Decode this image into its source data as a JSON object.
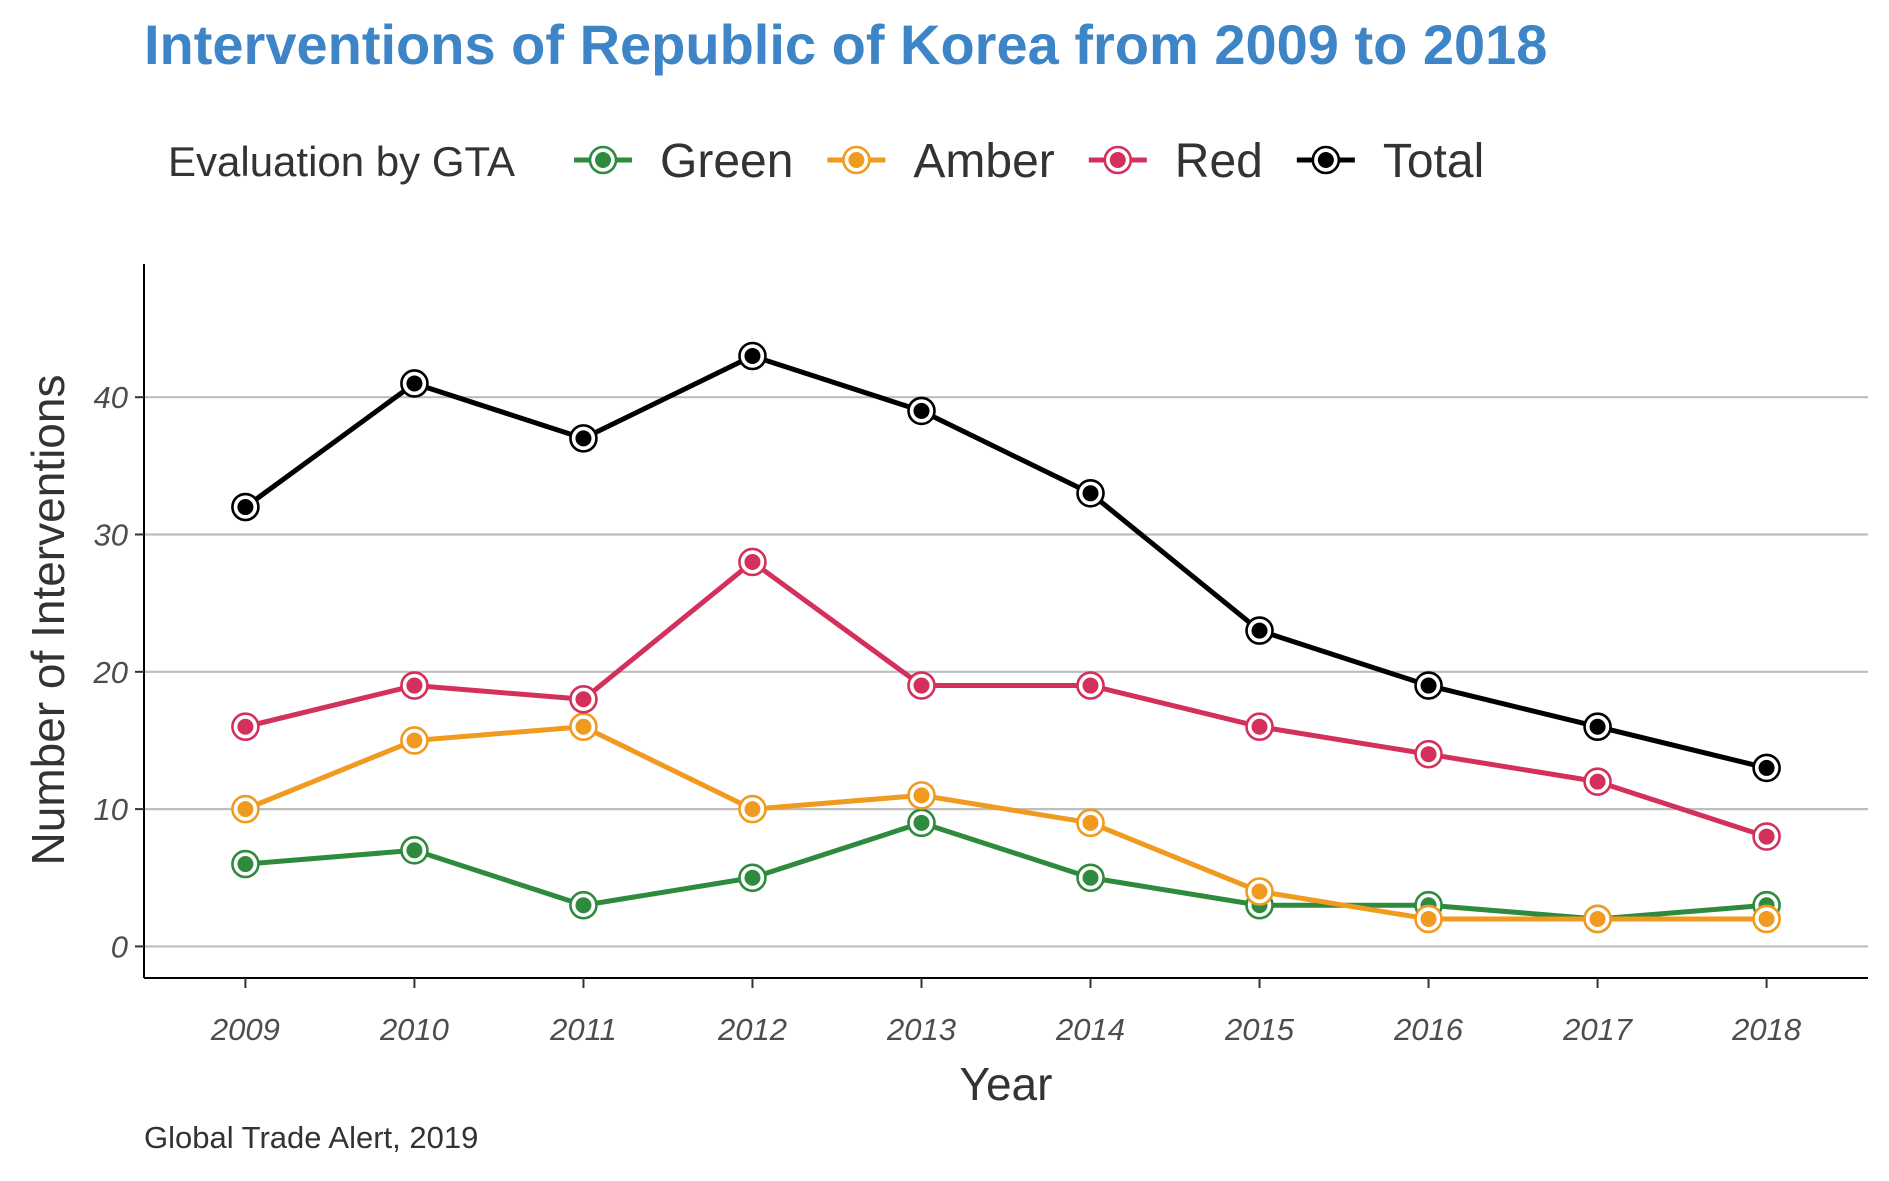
{
  "title": "Interventions of Republic of Korea from 2009 to 2018",
  "legend_title": "Evaluation by GTA",
  "caption": "Global Trade Alert, 2019",
  "colors": {
    "title": "#3d85c6",
    "grid": "#bebebe",
    "axis": "#000000"
  },
  "chart_data": {
    "type": "line",
    "title": "Interventions of Republic of Korea from 2009 to 2018",
    "xlabel": "Year",
    "ylabel": "Number of Interventions",
    "x": [
      "2009",
      "2010",
      "2011",
      "2012",
      "2013",
      "2014",
      "2015",
      "2016",
      "2017",
      "2018"
    ],
    "ylim": [
      -2.3,
      49.7
    ],
    "yticks": [
      0,
      10,
      20,
      30,
      40
    ],
    "grid": "horizontal major",
    "legend": "top",
    "series": [
      {
        "name": "Green",
        "color": "#2e8b3d",
        "values": [
          6,
          7,
          3,
          5,
          9,
          5,
          3,
          3,
          2,
          3
        ]
      },
      {
        "name": "Amber",
        "color": "#f09a20",
        "values": [
          10,
          15,
          16,
          10,
          11,
          9,
          4,
          2,
          2,
          2
        ]
      },
      {
        "name": "Red",
        "color": "#d3305c",
        "values": [
          16,
          19,
          18,
          28,
          19,
          19,
          16,
          14,
          12,
          8
        ]
      },
      {
        "name": "Total",
        "color": "#000000",
        "values": [
          32,
          41,
          37,
          43,
          39,
          33,
          23,
          19,
          16,
          13
        ]
      }
    ]
  }
}
